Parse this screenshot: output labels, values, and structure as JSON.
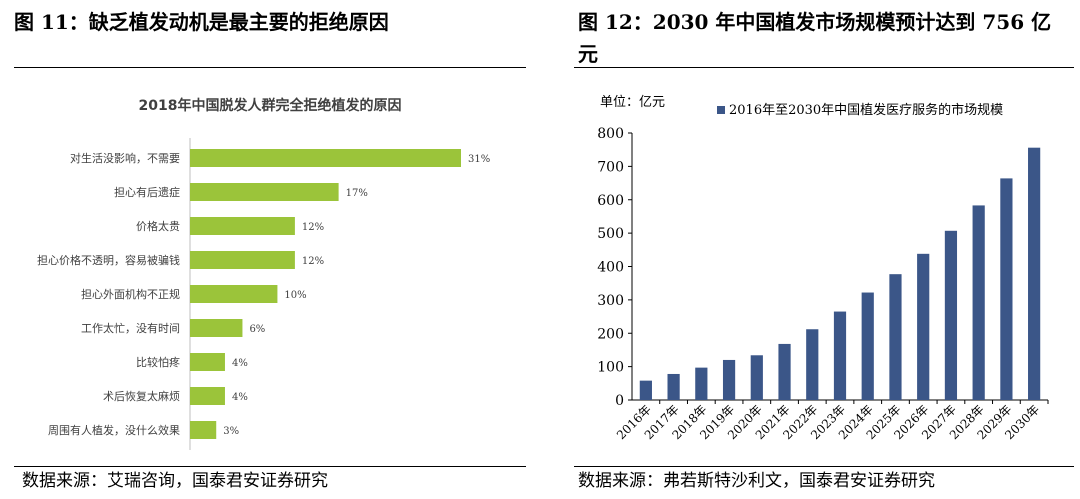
{
  "left": {
    "figure_title": "图 11：缺乏植发动机是最主要的拒绝原因",
    "source": "数据来源：艾瑞咨询，国泰君安证券研究"
  },
  "right": {
    "figure_title_line1": "图 12：2030 年中国植发市场规模预计达到 756 亿",
    "figure_title_line2": "元",
    "source": "数据来源：弗若斯特沙利文，国泰君安证券研究"
  },
  "colors": {
    "bar_green": "#9BC43A",
    "bar_navy": "#3B5688"
  },
  "chart_data": [
    {
      "type": "bar",
      "orientation": "horizontal",
      "title": "2018年中国脱发人群完全拒绝植发的原因",
      "categories": [
        "对生活没影响，不需要",
        "担心有后遗症",
        "价格太贵",
        "担心价格不透明，容易被骗钱",
        "担心外面机构不正规",
        "工作太忙，没有时间",
        "比较怕疼",
        "术后恢复太麻烦",
        "周围有人植发，没什么效果"
      ],
      "values": [
        31,
        17,
        12,
        12,
        10,
        6,
        4,
        4,
        3
      ],
      "data_labels": [
        "31%",
        "17%",
        "12%",
        "12%",
        "10%",
        "6%",
        "4%",
        "4%",
        "3%"
      ],
      "xlim": [
        0,
        31
      ]
    },
    {
      "type": "bar",
      "unit_label": "单位：亿元",
      "categories": [
        "2016年",
        "2017年",
        "2018年",
        "2019年",
        "2020年",
        "2021年",
        "2022年",
        "2023年",
        "2024年",
        "2025年",
        "2026年",
        "2027年",
        "2028年",
        "2029年",
        "2030年"
      ],
      "series": [
        {
          "name": "2016年至2030年中国植发医疗服务的市场规模",
          "values": [
            58,
            78,
            97,
            120,
            134,
            168,
            212,
            265,
            322,
            377,
            438,
            507,
            583,
            664,
            756
          ]
        }
      ],
      "ylim": [
        0,
        800
      ],
      "yticks": [
        "0",
        "100",
        "200",
        "300",
        "400",
        "500",
        "600",
        "700",
        "800"
      ],
      "grid": false,
      "legend": "top"
    }
  ]
}
